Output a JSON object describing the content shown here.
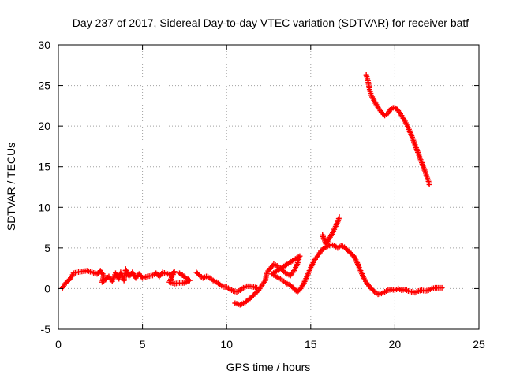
{
  "chart_data": {
    "type": "scatter",
    "title": "Day 237 of 2017, Sidereal Day-to-day VTEC variation (SDTVAR) for receiver batf",
    "xlabel": "GPS time / hours",
    "ylabel": "SDTVAR / TECUs",
    "xlim": [
      0,
      25
    ],
    "ylim": [
      -5,
      30
    ],
    "xticks": [
      0,
      5,
      10,
      15,
      20,
      25
    ],
    "yticks": [
      -5,
      0,
      5,
      10,
      15,
      20,
      25,
      30
    ],
    "xtick_labels": [
      "0",
      "5",
      "10",
      "15",
      "20",
      "25"
    ],
    "ytick_labels": [
      "-5",
      "0",
      "5",
      "10",
      "15",
      "20",
      "25",
      "30"
    ],
    "grid": true,
    "legend": "none",
    "marker": "plus",
    "color": "#ff0000",
    "series": [
      {
        "points": [
          [
            0.25,
            0.1
          ],
          [
            0.4,
            0.6
          ],
          [
            0.6,
            1.0
          ],
          [
            0.8,
            1.5
          ],
          [
            0.9,
            1.9
          ],
          [
            1.1,
            2.0
          ],
          [
            1.4,
            2.1
          ],
          [
            1.7,
            2.2
          ],
          [
            2.0,
            2.0
          ],
          [
            2.3,
            1.8
          ],
          [
            2.5,
            2.2
          ],
          [
            2.7,
            1.6
          ],
          [
            2.6,
            0.8
          ],
          [
            2.8,
            1.1
          ],
          [
            3.0,
            1.5
          ],
          [
            3.2,
            0.9
          ],
          [
            3.4,
            1.9
          ],
          [
            3.6,
            1.2
          ],
          [
            3.7,
            2.0
          ],
          [
            3.9,
            1.0
          ],
          [
            4.0,
            2.4
          ],
          [
            4.2,
            1.5
          ],
          [
            4.4,
            2.0
          ],
          [
            4.6,
            1.3
          ],
          [
            4.8,
            1.8
          ],
          [
            5.0,
            1.3
          ],
          [
            5.3,
            1.5
          ],
          [
            5.6,
            1.6
          ],
          [
            5.8,
            1.9
          ],
          [
            6.0,
            1.5
          ],
          [
            6.2,
            2.0
          ],
          [
            6.5,
            1.8
          ],
          [
            6.7,
            1.7
          ],
          [
            6.9,
            2.1
          ],
          [
            6.6,
            0.8
          ],
          [
            6.9,
            0.6
          ],
          [
            7.2,
            0.7
          ],
          [
            7.5,
            0.7
          ],
          [
            7.8,
            1.0
          ],
          [
            7.2,
            1.9
          ]
        ]
      },
      {
        "points": [
          [
            8.2,
            2.0
          ],
          [
            8.4,
            1.6
          ],
          [
            8.6,
            1.3
          ],
          [
            8.8,
            1.5
          ],
          [
            9.0,
            1.3
          ],
          [
            9.2,
            1.0
          ],
          [
            9.4,
            0.8
          ],
          [
            9.6,
            0.5
          ],
          [
            9.8,
            0.2
          ],
          [
            10.0,
            0.2
          ],
          [
            10.2,
            -0.1
          ],
          [
            10.4,
            -0.3
          ],
          [
            10.6,
            -0.4
          ],
          [
            10.8,
            -0.2
          ],
          [
            11.0,
            0.1
          ],
          [
            11.2,
            0.3
          ],
          [
            11.4,
            0.3
          ],
          [
            11.6,
            0.2
          ],
          [
            11.8,
            0.1
          ]
        ]
      },
      {
        "points": [
          [
            10.5,
            -1.8
          ],
          [
            10.8,
            -2.0
          ],
          [
            11.1,
            -1.7
          ],
          [
            11.4,
            -1.2
          ],
          [
            11.6,
            -0.8
          ],
          [
            11.9,
            -0.2
          ],
          [
            12.1,
            0.4
          ],
          [
            12.3,
            1.0
          ],
          [
            12.4,
            2.0
          ],
          [
            12.6,
            2.5
          ],
          [
            12.8,
            3.0
          ],
          [
            13.0,
            2.8
          ],
          [
            13.2,
            2.5
          ],
          [
            13.4,
            2.1
          ],
          [
            13.6,
            1.8
          ],
          [
            13.8,
            1.6
          ],
          [
            14.0,
            2.2
          ],
          [
            14.2,
            3.0
          ],
          [
            14.35,
            4.0
          ],
          [
            12.7,
            1.8
          ],
          [
            13.0,
            1.4
          ],
          [
            13.2,
            1.2
          ],
          [
            13.4,
            0.9
          ],
          [
            13.6,
            0.6
          ],
          [
            13.8,
            0.4
          ],
          [
            14.0,
            0.0
          ],
          [
            14.2,
            -0.4
          ],
          [
            14.4,
            0.0
          ],
          [
            14.6,
            0.7
          ],
          [
            14.8,
            1.6
          ],
          [
            15.0,
            2.6
          ],
          [
            15.2,
            3.4
          ],
          [
            15.4,
            4.0
          ],
          [
            15.6,
            4.6
          ],
          [
            15.8,
            5.0
          ],
          [
            16.0,
            5.2
          ],
          [
            16.2,
            5.4
          ],
          [
            16.4,
            5.3
          ],
          [
            16.6,
            5.0
          ],
          [
            16.8,
            5.3
          ],
          [
            17.0,
            5.1
          ],
          [
            17.2,
            4.7
          ],
          [
            17.4,
            4.3
          ],
          [
            17.6,
            3.9
          ],
          [
            17.8,
            3.0
          ],
          [
            18.0,
            2.0
          ],
          [
            18.2,
            1.1
          ],
          [
            18.4,
            0.5
          ],
          [
            18.6,
            0.0
          ],
          [
            18.8,
            -0.4
          ],
          [
            19.0,
            -0.7
          ],
          [
            19.2,
            -0.6
          ],
          [
            19.4,
            -0.4
          ],
          [
            19.6,
            -0.2
          ],
          [
            19.8,
            -0.1
          ],
          [
            20.0,
            -0.2
          ],
          [
            20.2,
            0.0
          ],
          [
            20.4,
            -0.2
          ],
          [
            20.6,
            -0.1
          ],
          [
            20.8,
            -0.3
          ],
          [
            21.0,
            -0.4
          ],
          [
            21.2,
            -0.5
          ],
          [
            21.4,
            -0.3
          ],
          [
            21.6,
            -0.2
          ],
          [
            21.8,
            -0.3
          ],
          [
            22.0,
            -0.2
          ],
          [
            22.2,
            0.0
          ],
          [
            22.4,
            0.1
          ],
          [
            22.6,
            0.1
          ],
          [
            22.8,
            0.1
          ]
        ]
      },
      {
        "points": [
          [
            15.7,
            6.6
          ],
          [
            15.9,
            5.5
          ],
          [
            16.0,
            5.8
          ],
          [
            16.2,
            6.5
          ],
          [
            16.4,
            7.3
          ],
          [
            16.6,
            8.2
          ],
          [
            16.7,
            8.8
          ]
        ]
      },
      {
        "points": [
          [
            18.3,
            26.3
          ],
          [
            18.4,
            25.6
          ],
          [
            18.5,
            24.5
          ],
          [
            18.6,
            23.8
          ],
          [
            18.8,
            23.0
          ],
          [
            19.0,
            22.3
          ],
          [
            19.2,
            21.7
          ],
          [
            19.4,
            21.3
          ],
          [
            19.6,
            21.6
          ],
          [
            19.8,
            22.2
          ],
          [
            20.0,
            22.3
          ],
          [
            20.2,
            21.9
          ],
          [
            20.4,
            21.3
          ],
          [
            20.6,
            20.6
          ],
          [
            20.8,
            19.8
          ],
          [
            21.0,
            18.8
          ],
          [
            21.2,
            17.7
          ],
          [
            21.4,
            16.6
          ],
          [
            21.6,
            15.5
          ],
          [
            21.8,
            14.4
          ],
          [
            22.0,
            13.2
          ],
          [
            22.05,
            12.8
          ]
        ]
      }
    ]
  }
}
